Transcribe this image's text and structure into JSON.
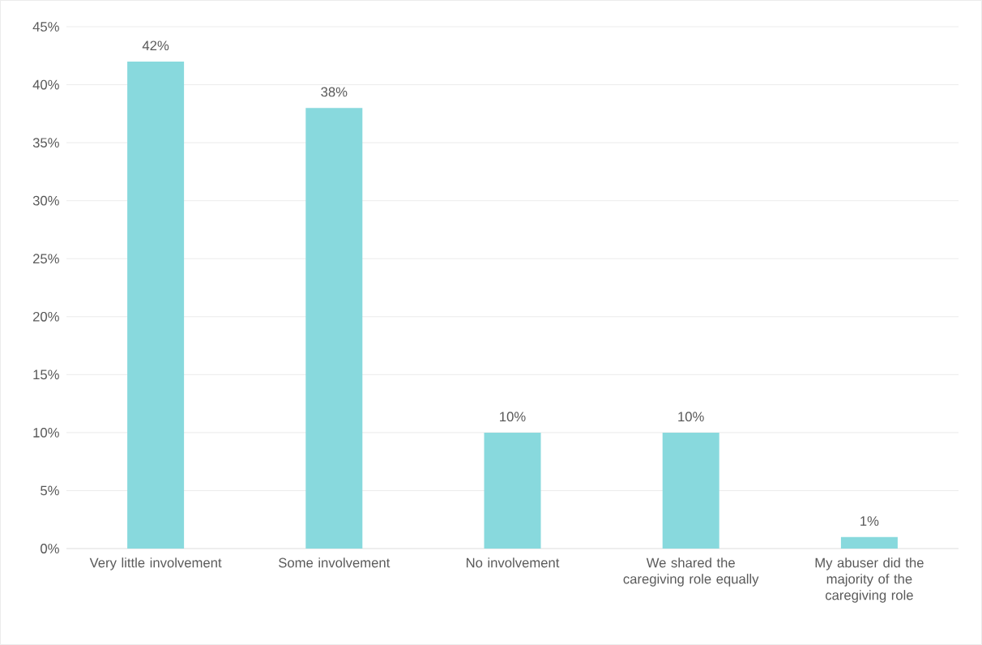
{
  "chart_data": {
    "type": "bar",
    "categories": [
      "Very little involvement",
      "Some involvement",
      "No involvement",
      "We shared  the caregiving role equally",
      "My abuser did the majority of the caregiving role"
    ],
    "values": [
      42,
      38,
      10,
      10,
      1
    ],
    "value_labels": [
      "42%",
      "38%",
      "10%",
      "10%",
      "1%"
    ],
    "color": "#88d9dd",
    "ylim": [
      0,
      45
    ],
    "yticks": [
      {
        "value": 0,
        "label": "0%"
      },
      {
        "value": 5,
        "label": "5%"
      },
      {
        "value": 10,
        "label": "10%"
      },
      {
        "value": 15,
        "label": "15%"
      },
      {
        "value": 20,
        "label": "20%"
      },
      {
        "value": 25,
        "label": "25%"
      },
      {
        "value": 30,
        "label": "30%"
      },
      {
        "value": 35,
        "label": "35%"
      },
      {
        "value": 40,
        "label": "40%"
      },
      {
        "value": 45,
        "label": "45%"
      }
    ],
    "grid": "y"
  }
}
